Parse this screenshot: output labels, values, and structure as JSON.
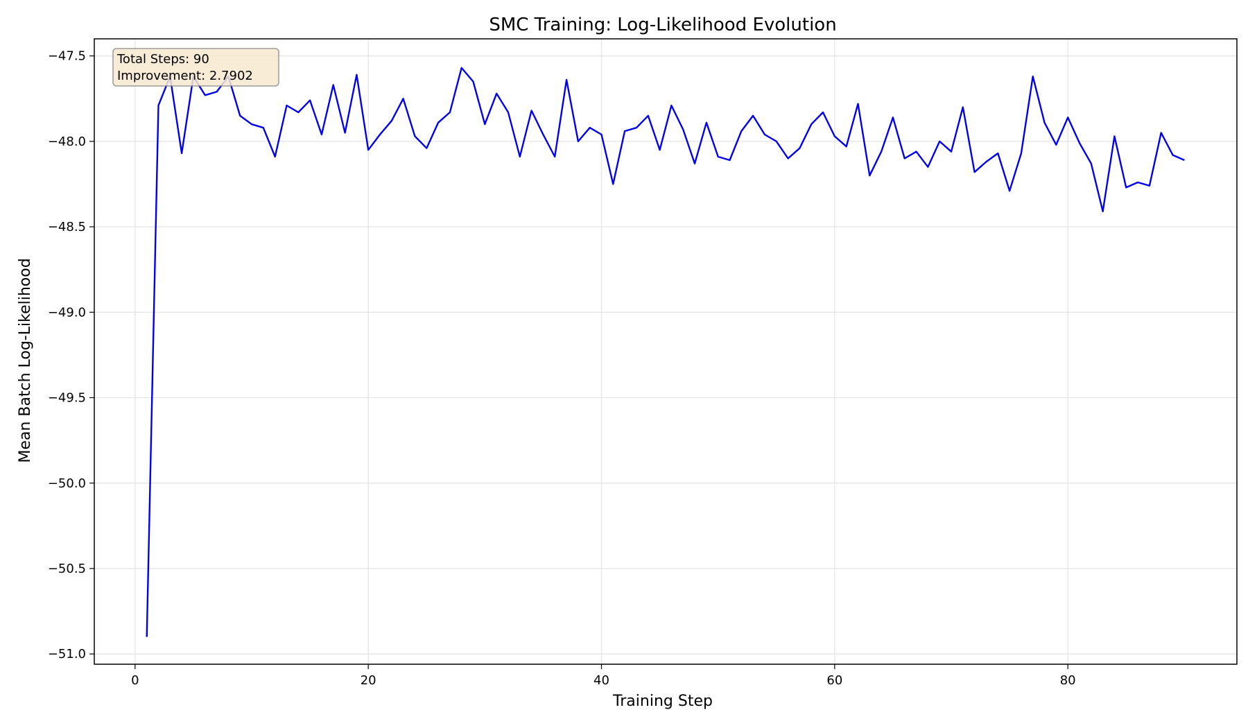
{
  "chart_data": {
    "type": "line",
    "title": "SMC Training: Log-Likelihood Evolution",
    "xlabel": "Training Step",
    "ylabel": "Mean Batch Log-Likelihood",
    "xlim": [
      -3.5,
      94.5
    ],
    "ylim": [
      -51.06,
      -47.4
    ],
    "xticks": [
      0,
      20,
      40,
      60,
      80
    ],
    "yticks": [
      -51.0,
      -50.5,
      -50.0,
      -49.5,
      -49.0,
      -48.5,
      -48.0,
      -47.5
    ],
    "xtick_labels": [
      "0",
      "20",
      "40",
      "60",
      "80"
    ],
    "ytick_labels": [
      "−51.0",
      "−50.5",
      "−50.0",
      "−49.5",
      "−49.0",
      "−48.5",
      "−48.0",
      "−47.5"
    ],
    "grid": true,
    "series": [
      {
        "color": "#0000ee",
        "x": [
          1,
          2,
          3,
          4,
          5,
          6,
          7,
          8,
          9,
          10,
          11,
          12,
          13,
          14,
          15,
          16,
          17,
          18,
          19,
          20,
          21,
          22,
          23,
          24,
          25,
          26,
          27,
          28,
          29,
          30,
          31,
          32,
          33,
          34,
          35,
          36,
          37,
          38,
          39,
          40,
          41,
          42,
          43,
          44,
          45,
          46,
          47,
          48,
          49,
          50,
          51,
          52,
          53,
          54,
          55,
          56,
          57,
          58,
          59,
          60,
          61,
          62,
          63,
          64,
          65,
          66,
          67,
          68,
          69,
          70,
          71,
          72,
          73,
          74,
          75,
          76,
          77,
          78,
          79,
          80,
          81,
          82,
          83,
          84,
          85,
          86,
          87,
          88,
          89,
          90
        ],
        "y": [
          -50.9,
          -47.79,
          -47.62,
          -48.07,
          -47.62,
          -47.73,
          -47.71,
          -47.62,
          -47.85,
          -47.9,
          -47.92,
          -48.09,
          -47.79,
          -47.83,
          -47.76,
          -47.96,
          -47.67,
          -47.95,
          -47.61,
          -48.05,
          -47.96,
          -47.88,
          -47.75,
          -47.97,
          -48.04,
          -47.89,
          -47.83,
          -47.57,
          -47.65,
          -47.9,
          -47.72,
          -47.83,
          -48.09,
          -47.82,
          -47.96,
          -48.09,
          -47.64,
          -48.0,
          -47.92,
          -47.96,
          -48.25,
          -47.94,
          -47.92,
          -47.85,
          -48.05,
          -47.79,
          -47.93,
          -48.13,
          -47.89,
          -48.09,
          -48.11,
          -47.94,
          -47.85,
          -47.96,
          -48.0,
          -48.1,
          -48.04,
          -47.9,
          -47.83,
          -47.97,
          -48.03,
          -47.78,
          -48.2,
          -48.06,
          -47.86,
          -48.1,
          -48.06,
          -48.15,
          -48.0,
          -48.06,
          -47.8,
          -48.18,
          -48.12,
          -48.07,
          -48.29,
          -48.07,
          -47.62,
          -47.89,
          -48.02,
          -47.86,
          -48.01,
          -48.13,
          -48.41,
          -47.97,
          -48.27,
          -48.24,
          -48.26,
          -47.95,
          -48.08,
          -48.11
        ]
      }
    ],
    "annotation": {
      "lines": [
        "Total Steps: 90",
        "Improvement: 2.7902"
      ],
      "bg_color": "#f7e9cf",
      "border_color": "#8a8a8a"
    }
  }
}
